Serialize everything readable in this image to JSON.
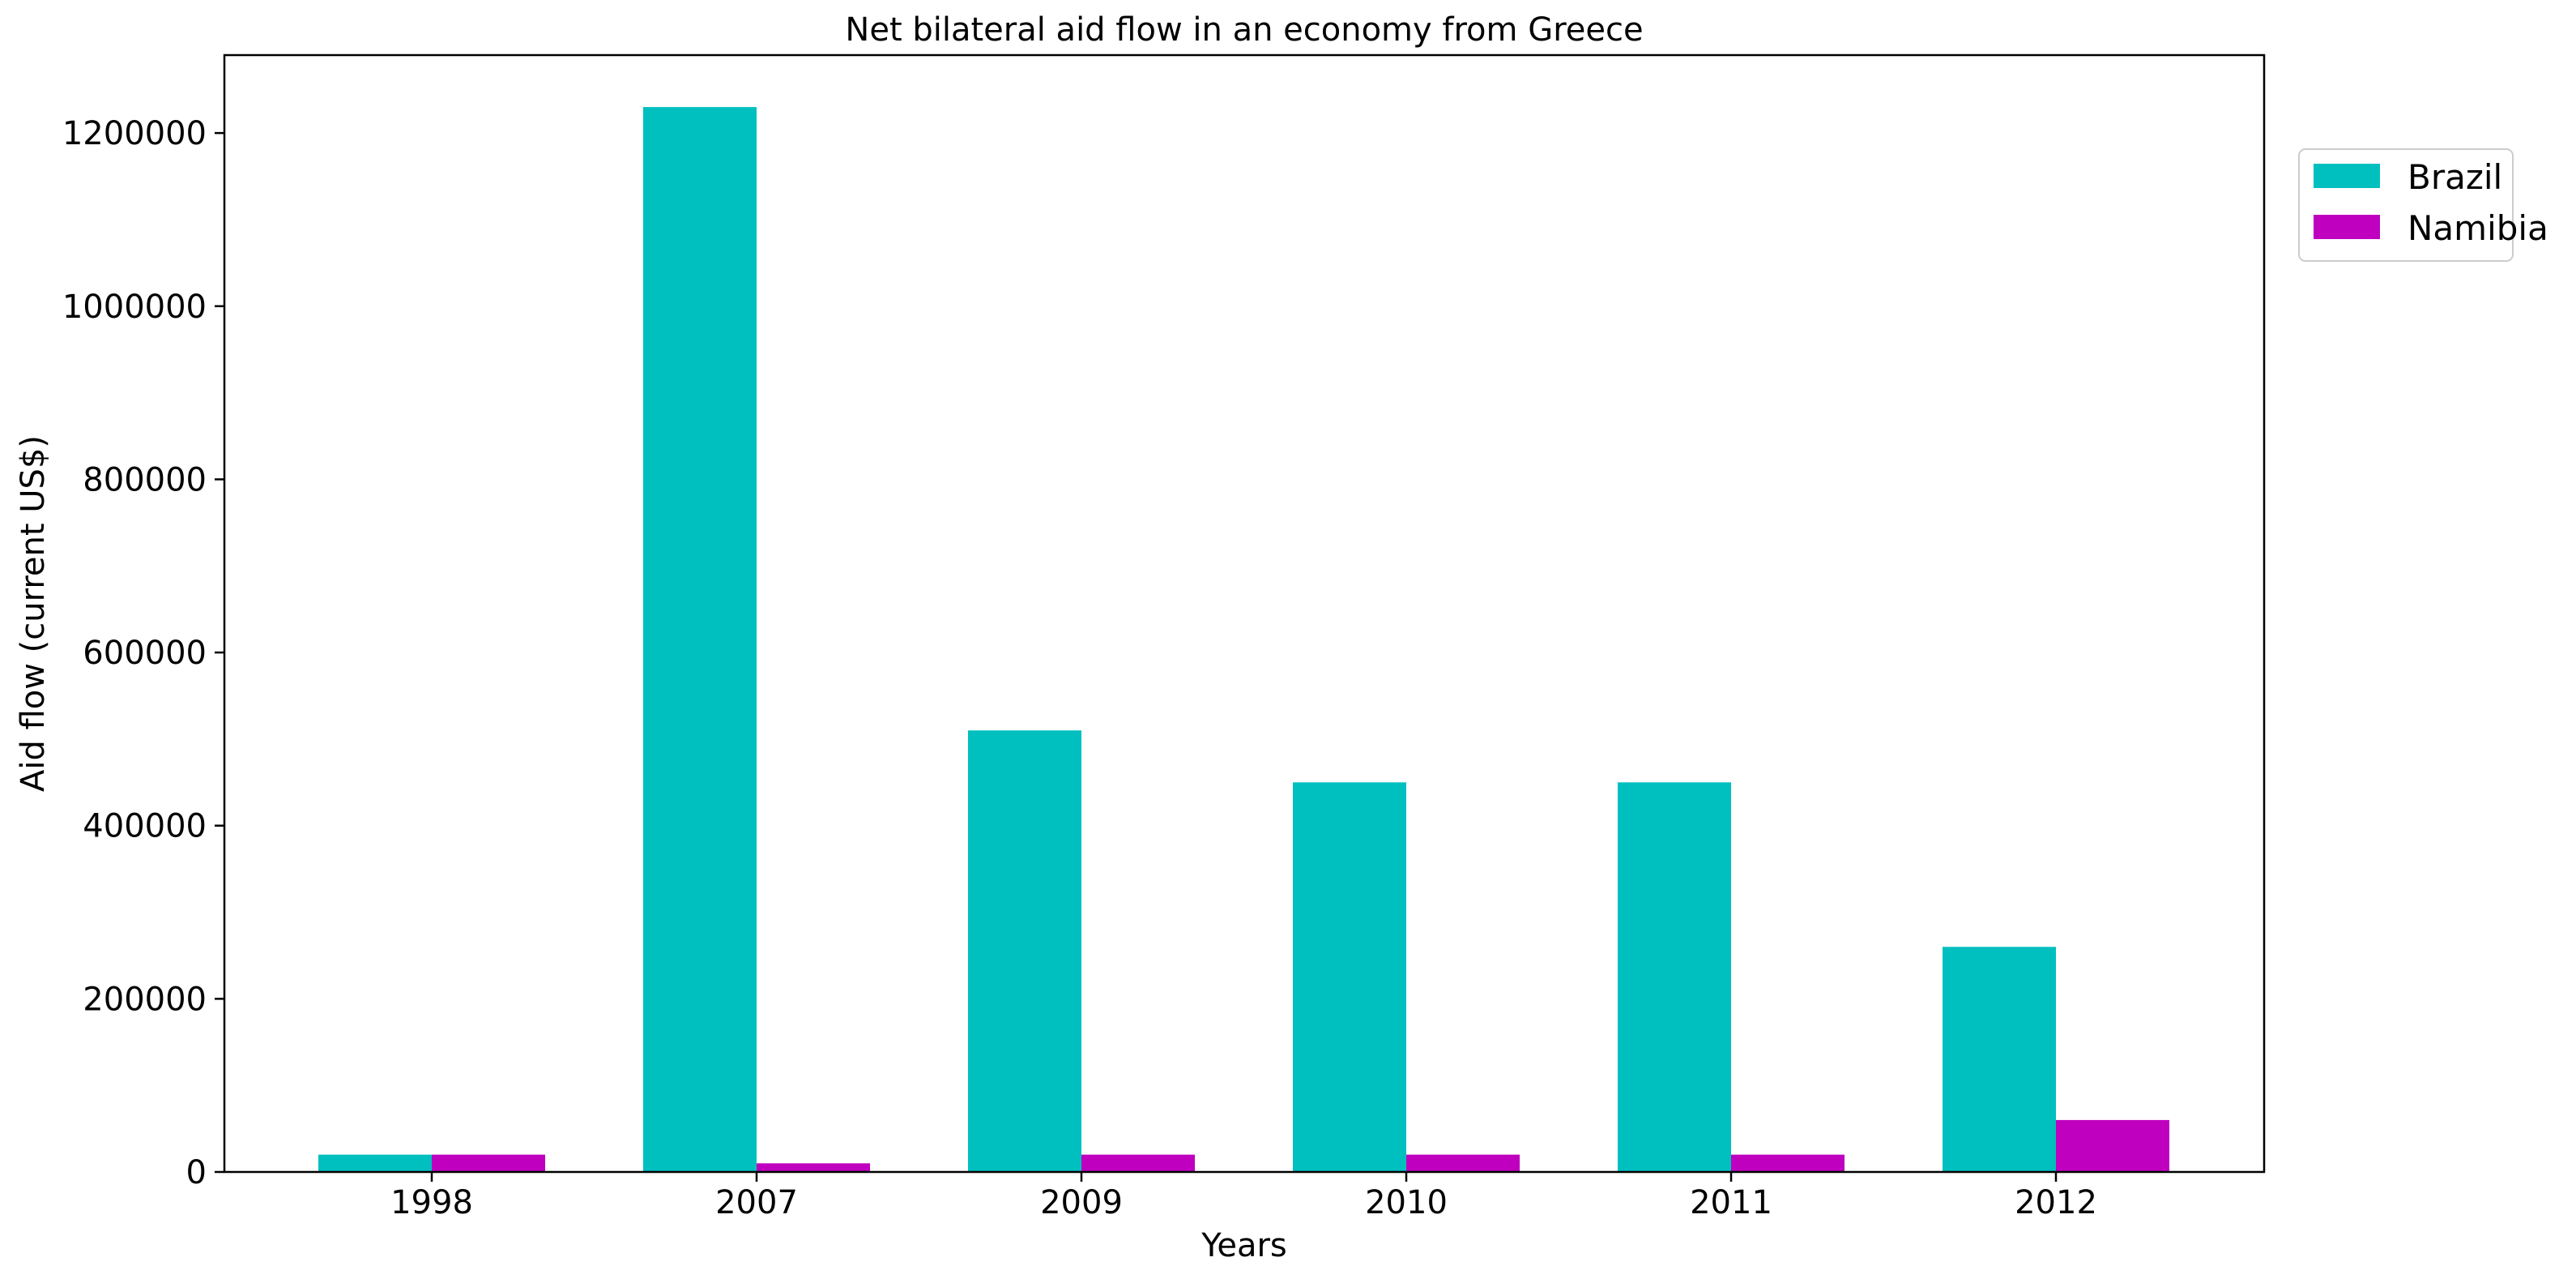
{
  "chart_data": {
    "type": "bar",
    "title": "Net bilateral aid flow in an economy from Greece",
    "xlabel": "Years",
    "ylabel": "Aid flow (current US$)",
    "categories": [
      "1998",
      "2007",
      "2009",
      "2010",
      "2011",
      "2012"
    ],
    "series": [
      {
        "name": "Brazil",
        "color": "#00bfbf",
        "values": [
          20000,
          1230000,
          510000,
          450000,
          450000,
          260000
        ]
      },
      {
        "name": "Namibia",
        "color": "#bf00bf",
        "values": [
          20000,
          10000,
          20000,
          20000,
          20000,
          60000
        ]
      }
    ],
    "ylim": [
      0,
      1290000
    ],
    "yticks": [
      0,
      200000,
      400000,
      600000,
      800000,
      1000000,
      1200000
    ],
    "ytick_labels": [
      "0",
      "200000",
      "400000",
      "600000",
      "800000",
      "1000000",
      "1200000"
    ],
    "grid": false,
    "legend_position": "outside-top-right"
  }
}
